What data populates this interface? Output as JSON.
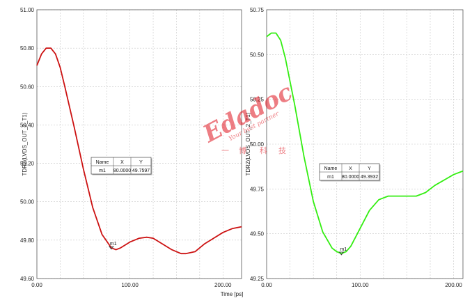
{
  "chart_data": [
    {
      "type": "line",
      "xlabel": "Time [ps]",
      "ylabel": "TDRZ(LVDS_OUT_2_T1)",
      "xlim": [
        0,
        220
      ],
      "ylim": [
        49.6,
        51.0
      ],
      "xticks": [
        "0.00",
        "100.00",
        "200.00"
      ],
      "yticks": [
        "49.60",
        "49.80",
        "50.00",
        "50.20",
        "50.40",
        "50.60",
        "50.80",
        "51.00"
      ],
      "grid": true,
      "series": [
        {
          "color": "#cc1111",
          "x": [
            0,
            5,
            10,
            15,
            20,
            25,
            30,
            40,
            50,
            60,
            70,
            80,
            85,
            90,
            100,
            110,
            118,
            125,
            135,
            145,
            155,
            160,
            170,
            180,
            190,
            200,
            210,
            220
          ],
          "y": [
            50.71,
            50.77,
            50.8,
            50.8,
            50.77,
            50.7,
            50.6,
            50.39,
            50.17,
            49.97,
            49.83,
            49.76,
            49.75,
            49.76,
            49.79,
            49.81,
            49.815,
            49.81,
            49.78,
            49.75,
            49.73,
            49.73,
            49.74,
            49.78,
            49.81,
            49.84,
            49.86,
            49.87
          ]
        }
      ],
      "marker": {
        "name": "m1",
        "x": 80,
        "y": 49.76,
        "table": {
          "headers": [
            "Name",
            "X",
            "Y"
          ],
          "row": [
            "m1",
            "80.0000",
            "49.7597"
          ]
        }
      }
    },
    {
      "type": "line",
      "xlabel": "",
      "ylabel": "TDRZ(LVDS_OUT_2_T1)",
      "xlim": [
        0,
        210
      ],
      "ylim": [
        49.25,
        50.75
      ],
      "xticks": [
        "0.00",
        "100.00",
        "200.00"
      ],
      "yticks": [
        "49.25",
        "49.50",
        "49.75",
        "50.00",
        "50.25",
        "50.50",
        "50.75"
      ],
      "grid": true,
      "series": [
        {
          "color": "#33ee11",
          "x": [
            0,
            5,
            10,
            15,
            20,
            30,
            40,
            50,
            60,
            70,
            75,
            80,
            85,
            90,
            100,
            110,
            120,
            130,
            140,
            150,
            160,
            170,
            180,
            190,
            200,
            210
          ],
          "y": [
            50.6,
            50.62,
            50.62,
            50.58,
            50.48,
            50.22,
            49.93,
            49.68,
            49.51,
            49.42,
            49.4,
            49.39,
            49.4,
            49.43,
            49.53,
            49.63,
            49.69,
            49.71,
            49.71,
            49.71,
            49.71,
            49.73,
            49.77,
            49.8,
            49.83,
            49.85
          ]
        }
      ],
      "marker": {
        "name": "m1",
        "x": 80,
        "y": 49.39,
        "table": {
          "headers": [
            "Name",
            "X",
            "Y"
          ],
          "row": [
            "m1",
            "80.0000",
            "49.3932"
          ]
        }
      }
    }
  ],
  "watermark": {
    "logo": "Edadoc",
    "tagline": "Your best partner",
    "chars": [
      "一",
      "博",
      "科",
      "技"
    ],
    "color": "#e0141e"
  }
}
